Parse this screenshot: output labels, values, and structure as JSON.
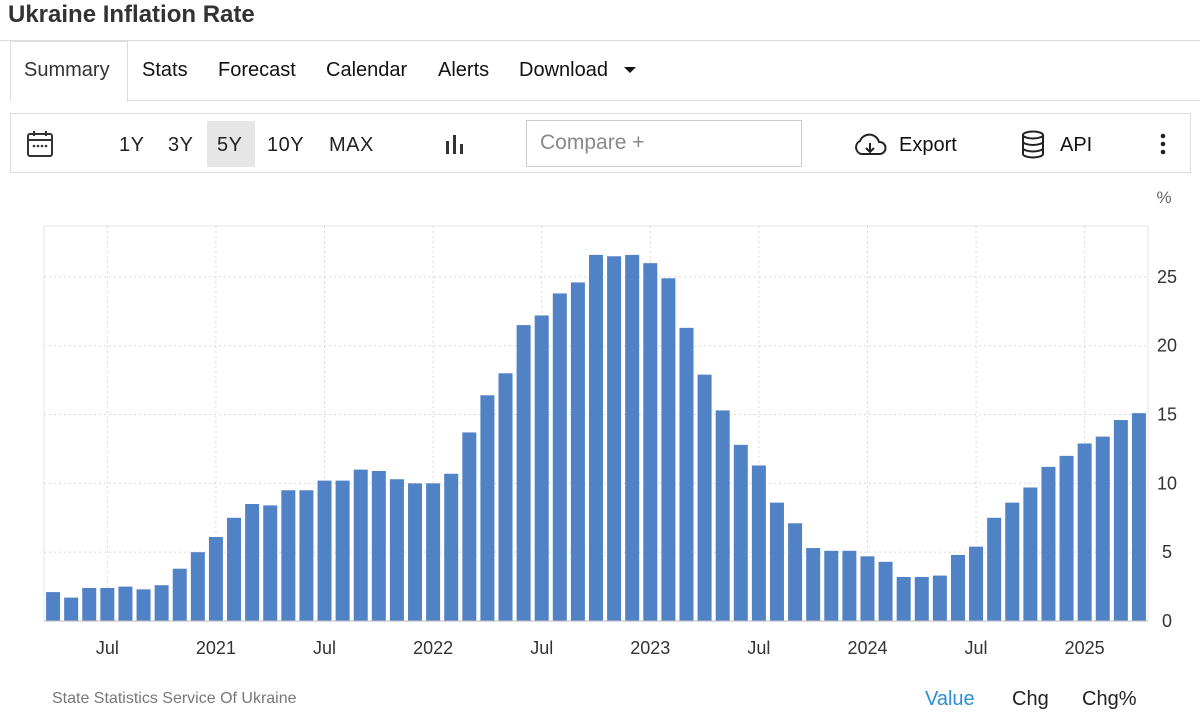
{
  "header": {
    "title": "Ukraine Inflation Rate"
  },
  "tabs": [
    "Summary",
    "Stats",
    "Forecast",
    "Calendar",
    "Alerts",
    "Download"
  ],
  "toolbar": {
    "ranges": [
      "1Y",
      "3Y",
      "5Y",
      "10Y",
      "MAX"
    ],
    "compare": "Compare +",
    "export": "Export",
    "api": "API"
  },
  "chart_data": {
    "type": "bar",
    "unit": "%",
    "color": "#5182c6",
    "categories": [
      null,
      null,
      null,
      "Jul",
      null,
      null,
      null,
      null,
      null,
      "2021",
      null,
      null,
      null,
      null,
      null,
      "Jul",
      null,
      null,
      null,
      null,
      null,
      "2022",
      null,
      null,
      null,
      null,
      null,
      "Jul",
      null,
      null,
      null,
      null,
      null,
      "2023",
      null,
      null,
      null,
      null,
      null,
      "Jul",
      null,
      null,
      null,
      null,
      null,
      "2024",
      null,
      null,
      null,
      null,
      null,
      "Jul",
      null,
      null,
      null,
      null,
      null,
      "2025",
      null,
      null,
      null
    ],
    "values": [
      2.1,
      1.7,
      2.4,
      2.4,
      2.5,
      2.3,
      2.6,
      3.8,
      5.0,
      6.1,
      7.5,
      8.5,
      8.4,
      9.5,
      9.5,
      10.2,
      10.2,
      11.0,
      10.9,
      10.3,
      10.0,
      10.0,
      10.7,
      13.7,
      16.4,
      18.0,
      21.5,
      22.2,
      23.8,
      24.6,
      26.6,
      26.5,
      26.6,
      26.0,
      24.9,
      21.3,
      17.9,
      15.3,
      12.8,
      11.3,
      8.6,
      7.1,
      5.3,
      5.1,
      5.1,
      4.7,
      4.3,
      3.2,
      3.2,
      3.3,
      4.8,
      5.4,
      7.5,
      8.6,
      9.7,
      11.2,
      12.0,
      12.9,
      13.4,
      14.6,
      15.1
    ],
    "ylim": [
      0,
      28.7
    ],
    "yticks": [
      0,
      5,
      10,
      15,
      20,
      25
    ],
    "grid": true
  },
  "footer": {
    "source": "State Statistics Service Of Ukraine",
    "views": [
      "Value",
      "Chg",
      "Chg%"
    ]
  }
}
